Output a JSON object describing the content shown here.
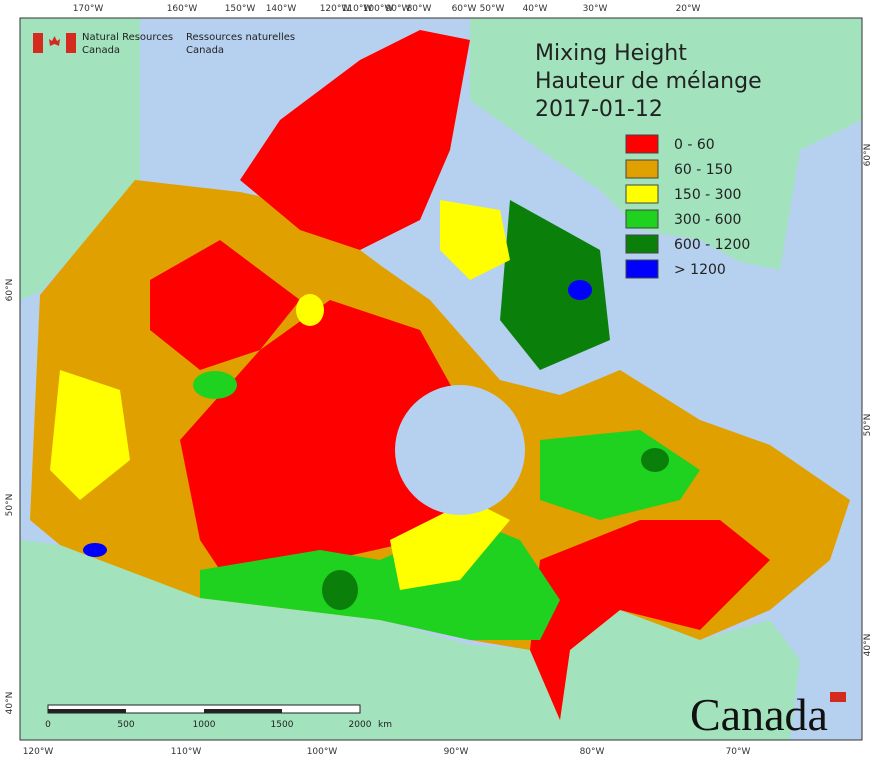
{
  "header": {
    "org_en": [
      "Natural Resources",
      "Canada"
    ],
    "org_fr": [
      "Ressources naturelles",
      "Canada"
    ]
  },
  "title": [
    "Mixing Height",
    "Hauteur de mélange",
    "2017-01-12"
  ],
  "legend": [
    {
      "label": "0 - 60",
      "color": "#ff0000"
    },
    {
      "label": "60 - 150",
      "color": "#e0a000"
    },
    {
      "label": "150 - 300",
      "color": "#ffff00"
    },
    {
      "label": "300 - 600",
      "color": "#1fd21f"
    },
    {
      "label": "600 - 1200",
      "color": "#0a800a"
    },
    {
      "label": "> 1200",
      "color": "#0000ff"
    }
  ],
  "top_labels": [
    "170°W",
    "160°W",
    "150°W",
    "140°W",
    "120°W",
    "110°W",
    "100°W",
    "90°W",
    "80°W",
    "60°W",
    "50°W",
    "40°W",
    "30°W",
    "20°W"
  ],
  "bottom_labels": [
    "120°W",
    "110°W",
    "100°W",
    "90°W",
    "80°W",
    "70°W"
  ],
  "left_labels": [
    "60°N",
    "50°N",
    "40°N"
  ],
  "right_labels": [
    "60°N",
    "50°N",
    "40°N"
  ],
  "scale": {
    "ticks": [
      "0",
      "500",
      "1000",
      "1500",
      "2000"
    ],
    "unit": "km"
  },
  "wordmark": "Canada"
}
